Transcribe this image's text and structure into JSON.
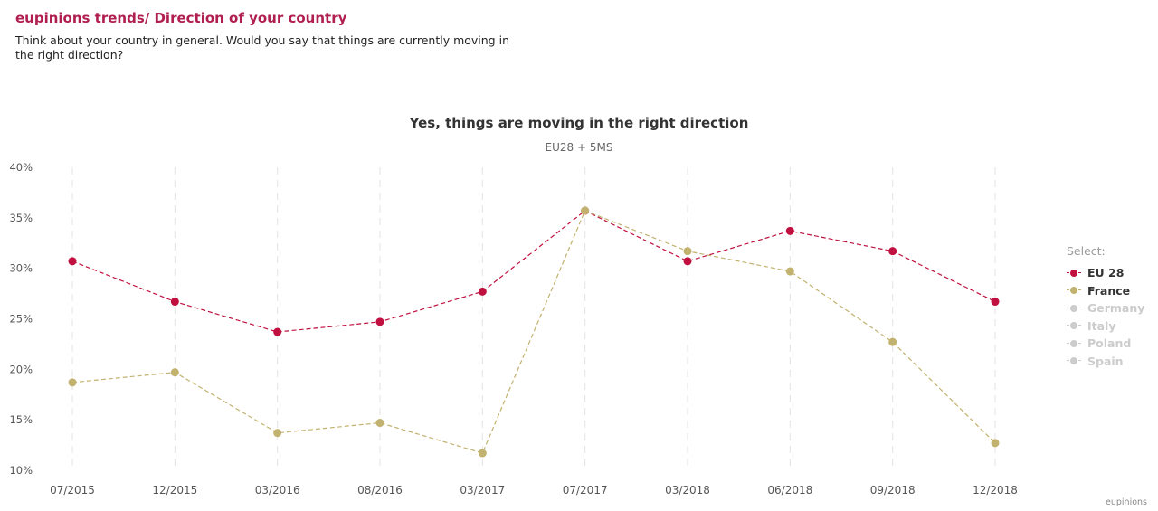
{
  "header": {
    "title": "eupinions trends/ Direction of your country",
    "subtitle": "Think about your country in general. Would you say that things are currently moving in the right direction?"
  },
  "legend": {
    "title": "Select:",
    "items": [
      {
        "label": "EU 28",
        "color": "#c0103f",
        "active": true
      },
      {
        "label": "France",
        "color": "#c2b26f",
        "active": true
      },
      {
        "label": "Germany",
        "color": "#cccccc",
        "active": false
      },
      {
        "label": "Italy",
        "color": "#cccccc",
        "active": false
      },
      {
        "label": "Poland",
        "color": "#cccccc",
        "active": false
      },
      {
        "label": "Spain",
        "color": "#cccccc",
        "active": false
      }
    ]
  },
  "credit": "eupinions",
  "chart_data": {
    "type": "line",
    "title": "Yes, things are moving in the right direction",
    "subtitle": "EU28 + 5MS",
    "xlabel": "",
    "ylabel": "",
    "categories": [
      "07/2015",
      "12/2015",
      "03/2016",
      "08/2016",
      "03/2017",
      "07/2017",
      "03/2018",
      "06/2018",
      "09/2018",
      "12/2018"
    ],
    "ylim": [
      10,
      40
    ],
    "yticks": [
      10,
      15,
      20,
      25,
      30,
      35,
      40
    ],
    "ytick_suffix": "%",
    "grid": "vertical-dashed",
    "legend_position": "right",
    "series": [
      {
        "name": "EU 28",
        "color": "#c0103f",
        "values": [
          30.7,
          26.7,
          23.7,
          24.7,
          27.7,
          35.7,
          30.7,
          33.7,
          31.7,
          26.7
        ]
      },
      {
        "name": "France",
        "color": "#c2b26f",
        "values": [
          18.7,
          19.7,
          13.7,
          14.7,
          11.7,
          35.7,
          31.7,
          29.7,
          22.7,
          12.7
        ]
      }
    ]
  }
}
